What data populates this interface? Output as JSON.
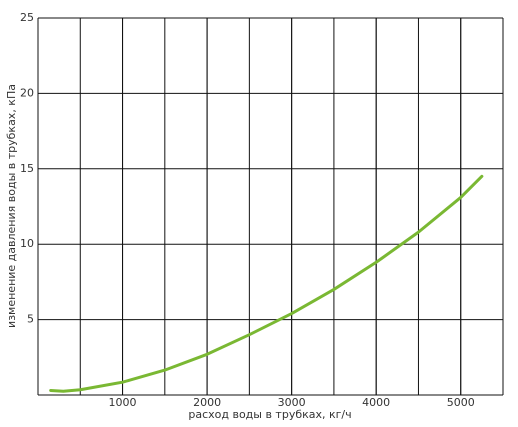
{
  "chart_data": {
    "type": "line",
    "xlabel": "расход воды в трубках, кг/ч",
    "ylabel": "изменение давления воды в трубках, кПа",
    "x": [
      150,
      300,
      500,
      1000,
      1500,
      2000,
      2500,
      3000,
      3500,
      4000,
      4500,
      5000,
      5250
    ],
    "series": [
      {
        "color": "#7ab833",
        "values": [
          0.3,
          0.25,
          0.35,
          0.85,
          1.65,
          2.7,
          4.0,
          5.4,
          7.0,
          8.8,
          10.8,
          13.1,
          14.5
        ]
      }
    ],
    "xlim": [
      0,
      5500
    ],
    "xticks": [
      1000,
      2000,
      3000,
      4000,
      5000
    ],
    "xgrid_step": 500,
    "ylim": [
      0,
      25
    ],
    "yticks": [
      5,
      10,
      15,
      20,
      25
    ],
    "grid": true
  }
}
